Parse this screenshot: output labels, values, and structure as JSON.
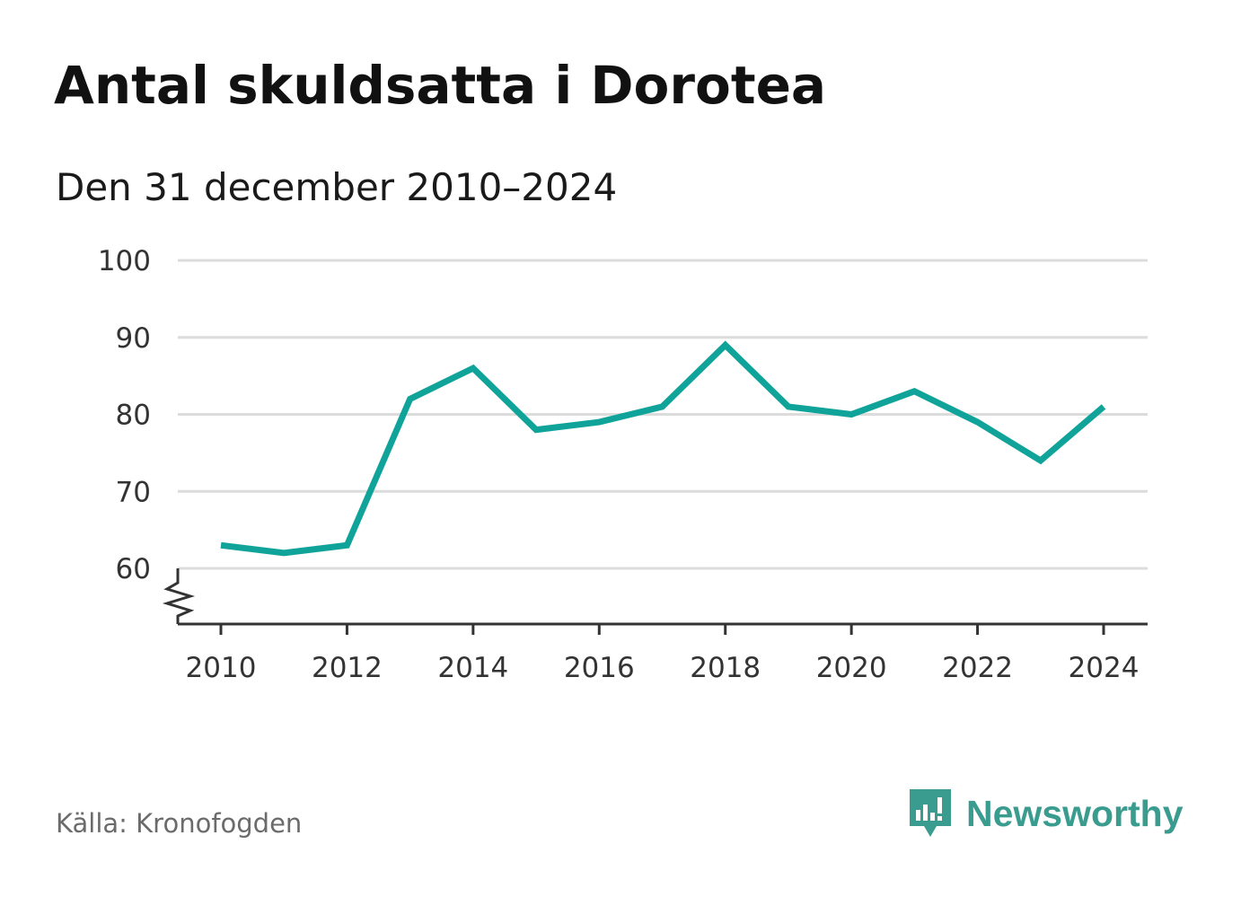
{
  "header": {
    "title": "Antal skuldsatta i Dorotea",
    "subtitle": "Den 31 december 2010–2024"
  },
  "footer": {
    "source": "Källa: Kronofogden",
    "brand": "Newsworthy"
  },
  "colors": {
    "line": "#0fa39a",
    "grid": "#dcdcdc",
    "axis": "#333333",
    "brand": "#3a9c8f"
  },
  "chart_data": {
    "type": "line",
    "title": "Antal skuldsatta i Dorotea",
    "subtitle": "Den 31 december 2010–2024",
    "x": [
      2010,
      2011,
      2012,
      2013,
      2014,
      2015,
      2016,
      2017,
      2018,
      2019,
      2020,
      2021,
      2022,
      2023,
      2024
    ],
    "series": [
      {
        "values": [
          63,
          62,
          63,
          82,
          86,
          78,
          79,
          81,
          89,
          81,
          80,
          83,
          79,
          74,
          81
        ]
      }
    ],
    "xticks": [
      2010,
      2012,
      2014,
      2016,
      2018,
      2020,
      2022,
      2024
    ],
    "yticks": [
      60,
      70,
      80,
      90,
      100
    ],
    "xlim": [
      2010,
      2024
    ],
    "ylim": [
      60,
      100
    ],
    "axis_break": true,
    "grid": true,
    "legend": "none"
  }
}
